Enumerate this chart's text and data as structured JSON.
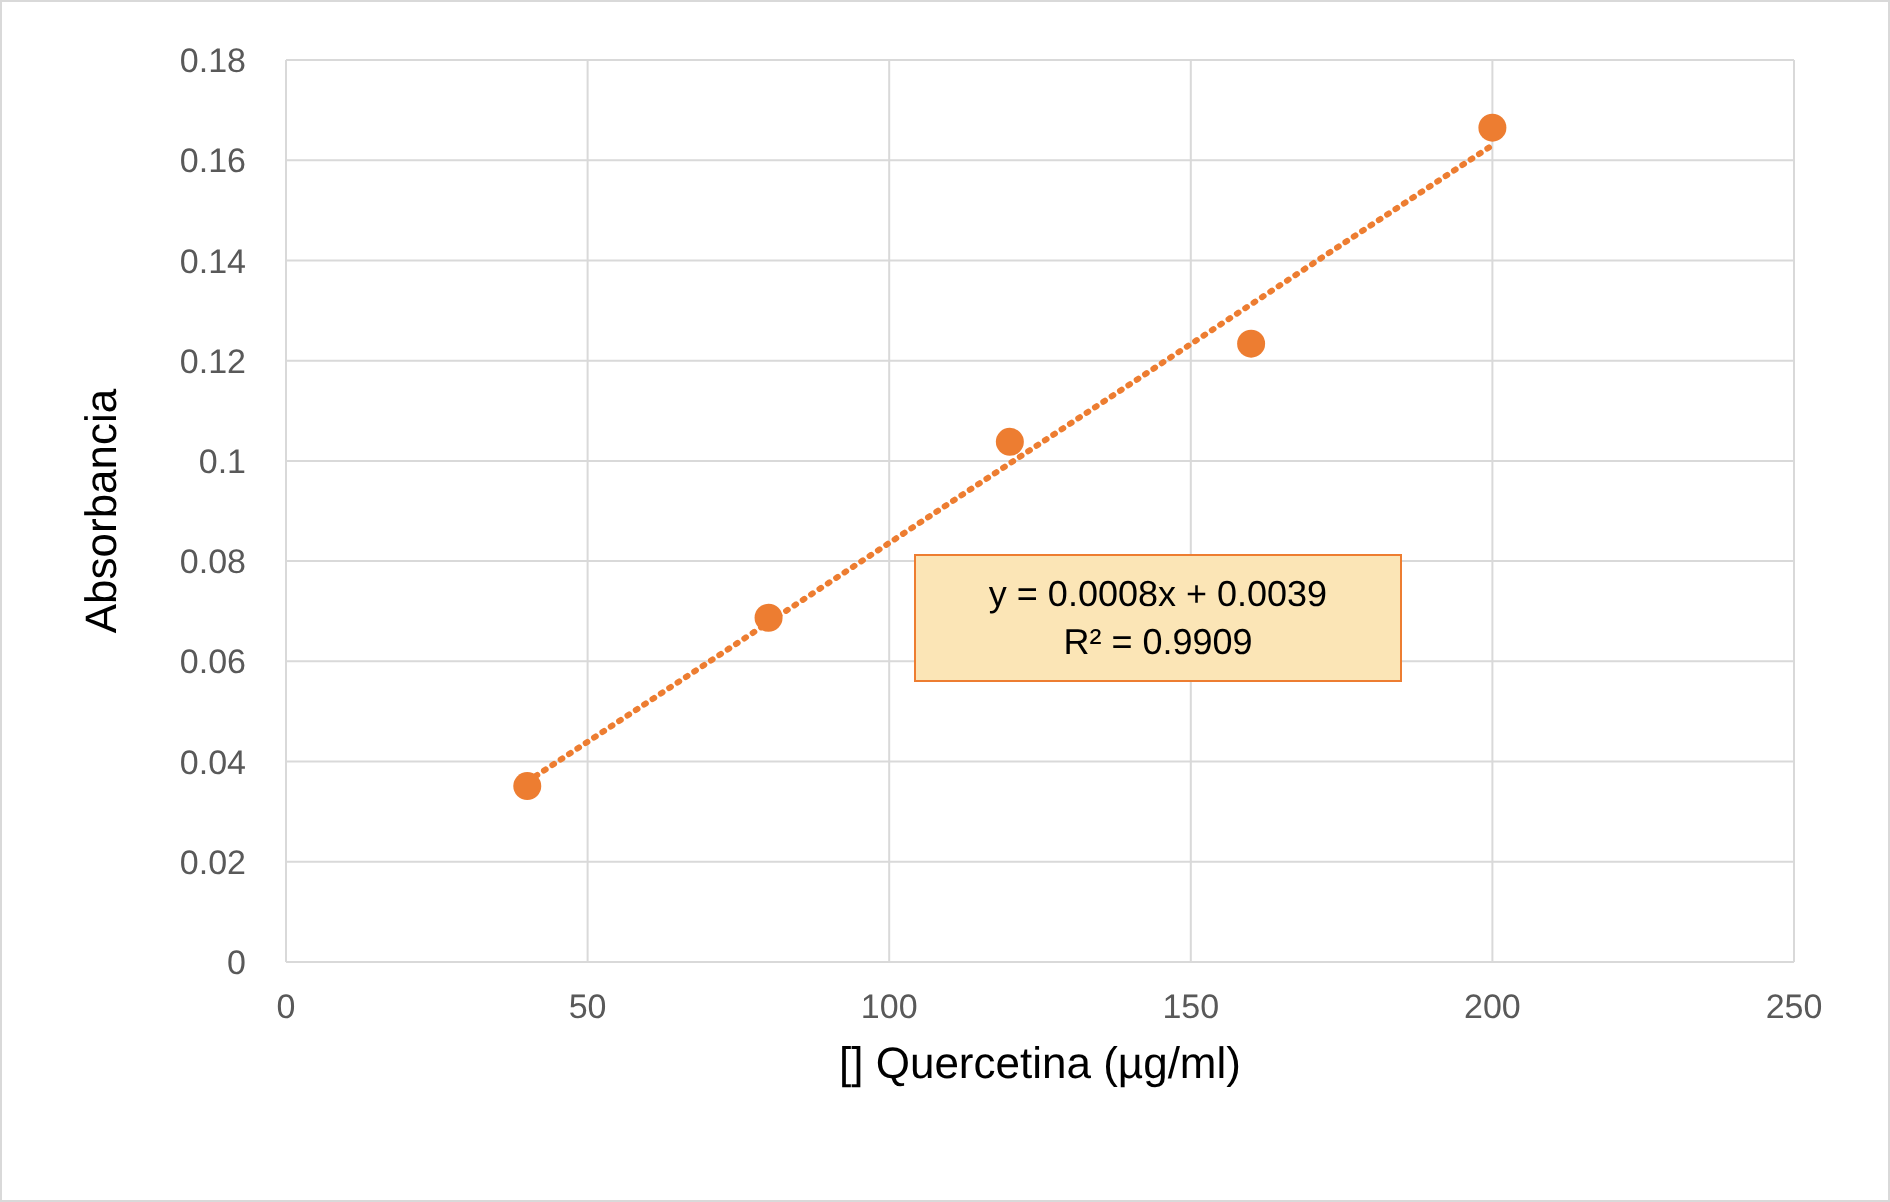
{
  "chart_data": {
    "type": "scatter",
    "xlabel": "[] Quercetina (µg/ml)",
    "ylabel": "Absorbancia",
    "x": [
      40,
      80,
      120,
      160,
      200
    ],
    "series": [
      {
        "color": "#ed7d31",
        "values": [
          0.0351,
          0.0687,
          0.1038,
          0.1234,
          0.1665
        ],
        "marker": "circle"
      },
      {
        "type": "line",
        "color": "#ed7d31",
        "x": [
          40,
          200
        ],
        "values": [
          0.036,
          0.163
        ],
        "marker": "none",
        "line_style": "dotted"
      }
    ],
    "annotations": [
      "y = 0.0008x + 0.0039",
      "R² = 0.9909"
    ],
    "xlim": [
      0,
      250
    ],
    "xticks": [
      0,
      50,
      100,
      150,
      200,
      250
    ],
    "ylim": [
      0,
      0.18
    ],
    "yticks": [
      0,
      0.02,
      0.04,
      0.06,
      0.08,
      0.1,
      0.12,
      0.14,
      0.16,
      0.18
    ],
    "grid": true,
    "legend": false
  }
}
